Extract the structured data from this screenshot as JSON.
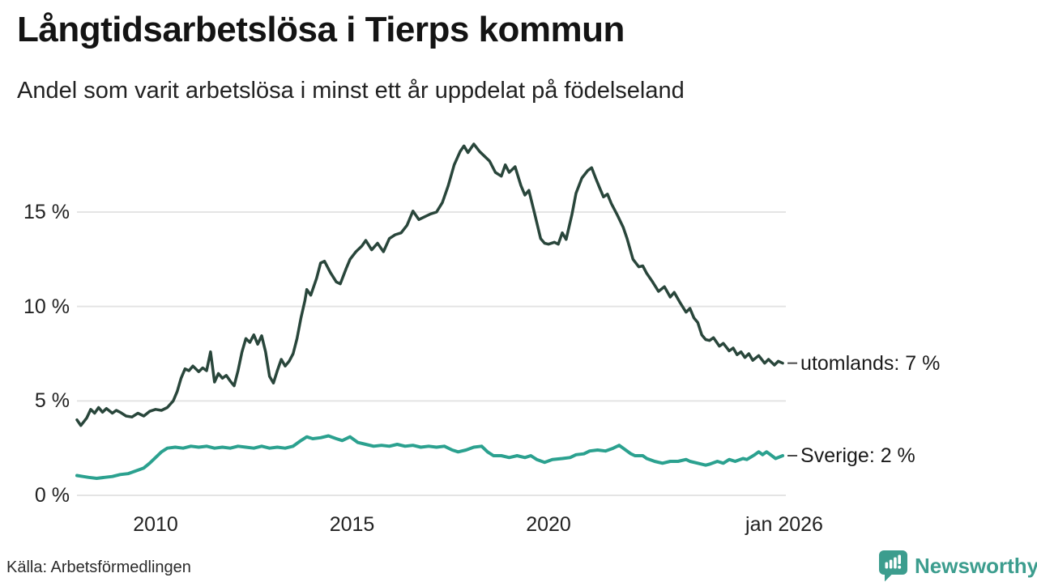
{
  "header": {
    "title": "Långtidsarbetslösa i Tierps kommun",
    "subtitle": "Andel som varit arbetslösa i minst ett år uppdelat på födelseland"
  },
  "footer": {
    "source": "Källa: Arbetsförmedlingen",
    "brand": "Newsworthy"
  },
  "colors": {
    "utomlands_line": "#29463b",
    "sverige_line": "#2ba18f",
    "grid": "#e4e4e4",
    "connector": "#4a4a4a",
    "brand_teal": "#3c9d8e",
    "text": "#1a1a1a"
  },
  "chart_data": {
    "type": "line",
    "title": "Långtidsarbetslösa i Tierps kommun",
    "subtitle": "Andel som varit arbetslösa i minst ett år uppdelat på födelseland",
    "xlabel": "",
    "ylabel": "",
    "xlim": [
      2008,
      2026.2
    ],
    "ylim": [
      0,
      19
    ],
    "grid": "horizontal-only",
    "legend_position": "line-end-labels",
    "yticks": [
      {
        "value": 0,
        "label": "0 %"
      },
      {
        "value": 5,
        "label": "5 %"
      },
      {
        "value": 10,
        "label": "10 %"
      },
      {
        "value": 15,
        "label": "15 %"
      }
    ],
    "xticks": [
      {
        "value": 2010,
        "label": "2010"
      },
      {
        "value": 2015,
        "label": "2015"
      },
      {
        "value": 2020,
        "label": "2020"
      },
      {
        "value": 2026,
        "label": "jan 2026"
      }
    ],
    "series": [
      {
        "name": "utomlands",
        "end_label": "utomlands: 7 %",
        "end_value_pct": 7,
        "color": "#29463b",
        "stroke_width": 3.5,
        "points": [
          [
            2008.0,
            4.0
          ],
          [
            2008.1,
            3.7
          ],
          [
            2008.25,
            4.1
          ],
          [
            2008.35,
            4.55
          ],
          [
            2008.45,
            4.35
          ],
          [
            2008.55,
            4.65
          ],
          [
            2008.65,
            4.4
          ],
          [
            2008.75,
            4.6
          ],
          [
            2008.9,
            4.35
          ],
          [
            2009.0,
            4.5
          ],
          [
            2009.1,
            4.4
          ],
          [
            2009.25,
            4.2
          ],
          [
            2009.4,
            4.15
          ],
          [
            2009.55,
            4.35
          ],
          [
            2009.7,
            4.2
          ],
          [
            2009.85,
            4.45
          ],
          [
            2010.0,
            4.55
          ],
          [
            2010.15,
            4.5
          ],
          [
            2010.3,
            4.65
          ],
          [
            2010.45,
            5.0
          ],
          [
            2010.55,
            5.5
          ],
          [
            2010.65,
            6.2
          ],
          [
            2010.75,
            6.7
          ],
          [
            2010.85,
            6.6
          ],
          [
            2010.95,
            6.85
          ],
          [
            2011.1,
            6.55
          ],
          [
            2011.2,
            6.75
          ],
          [
            2011.3,
            6.6
          ],
          [
            2011.4,
            7.6
          ],
          [
            2011.5,
            6.0
          ],
          [
            2011.6,
            6.45
          ],
          [
            2011.7,
            6.2
          ],
          [
            2011.8,
            6.35
          ],
          [
            2011.9,
            6.05
          ],
          [
            2012.0,
            5.8
          ],
          [
            2012.1,
            6.6
          ],
          [
            2012.2,
            7.6
          ],
          [
            2012.3,
            8.3
          ],
          [
            2012.4,
            8.1
          ],
          [
            2012.5,
            8.5
          ],
          [
            2012.6,
            8.0
          ],
          [
            2012.7,
            8.45
          ],
          [
            2012.8,
            7.6
          ],
          [
            2012.9,
            6.3
          ],
          [
            2013.0,
            5.95
          ],
          [
            2013.1,
            6.6
          ],
          [
            2013.2,
            7.2
          ],
          [
            2013.3,
            6.85
          ],
          [
            2013.4,
            7.1
          ],
          [
            2013.5,
            7.5
          ],
          [
            2013.6,
            8.3
          ],
          [
            2013.7,
            9.4
          ],
          [
            2013.8,
            10.3
          ],
          [
            2013.85,
            10.9
          ],
          [
            2013.95,
            10.6
          ],
          [
            2014.1,
            11.5
          ],
          [
            2014.2,
            12.3
          ],
          [
            2014.3,
            12.4
          ],
          [
            2014.45,
            11.8
          ],
          [
            2014.6,
            11.3
          ],
          [
            2014.7,
            11.2
          ],
          [
            2014.85,
            12.0
          ],
          [
            2014.95,
            12.5
          ],
          [
            2015.1,
            12.9
          ],
          [
            2015.25,
            13.2
          ],
          [
            2015.35,
            13.5
          ],
          [
            2015.5,
            13.0
          ],
          [
            2015.65,
            13.35
          ],
          [
            2015.8,
            12.9
          ],
          [
            2015.95,
            13.6
          ],
          [
            2016.1,
            13.8
          ],
          [
            2016.25,
            13.9
          ],
          [
            2016.4,
            14.3
          ],
          [
            2016.55,
            15.05
          ],
          [
            2016.7,
            14.6
          ],
          [
            2016.85,
            14.75
          ],
          [
            2017.0,
            14.9
          ],
          [
            2017.15,
            15.0
          ],
          [
            2017.3,
            15.5
          ],
          [
            2017.45,
            16.4
          ],
          [
            2017.6,
            17.5
          ],
          [
            2017.75,
            18.2
          ],
          [
            2017.85,
            18.5
          ],
          [
            2017.95,
            18.15
          ],
          [
            2018.1,
            18.6
          ],
          [
            2018.25,
            18.2
          ],
          [
            2018.4,
            17.9
          ],
          [
            2018.5,
            17.7
          ],
          [
            2018.65,
            17.1
          ],
          [
            2018.8,
            16.9
          ],
          [
            2018.9,
            17.5
          ],
          [
            2019.0,
            17.1
          ],
          [
            2019.15,
            17.4
          ],
          [
            2019.3,
            16.4
          ],
          [
            2019.4,
            15.9
          ],
          [
            2019.5,
            16.15
          ],
          [
            2019.65,
            14.9
          ],
          [
            2019.8,
            13.6
          ],
          [
            2019.9,
            13.35
          ],
          [
            2020.0,
            13.3
          ],
          [
            2020.15,
            13.4
          ],
          [
            2020.25,
            13.3
          ],
          [
            2020.35,
            13.9
          ],
          [
            2020.45,
            13.55
          ],
          [
            2020.6,
            14.9
          ],
          [
            2020.7,
            16.0
          ],
          [
            2020.85,
            16.8
          ],
          [
            2021.0,
            17.2
          ],
          [
            2021.1,
            17.35
          ],
          [
            2021.2,
            16.8
          ],
          [
            2021.3,
            16.3
          ],
          [
            2021.4,
            15.8
          ],
          [
            2021.5,
            15.95
          ],
          [
            2021.6,
            15.45
          ],
          [
            2021.75,
            14.85
          ],
          [
            2021.9,
            14.2
          ],
          [
            2022.0,
            13.6
          ],
          [
            2022.15,
            12.5
          ],
          [
            2022.3,
            12.1
          ],
          [
            2022.4,
            12.15
          ],
          [
            2022.5,
            11.75
          ],
          [
            2022.65,
            11.3
          ],
          [
            2022.8,
            10.8
          ],
          [
            2022.95,
            11.05
          ],
          [
            2023.1,
            10.5
          ],
          [
            2023.2,
            10.75
          ],
          [
            2023.35,
            10.2
          ],
          [
            2023.5,
            9.7
          ],
          [
            2023.6,
            9.9
          ],
          [
            2023.7,
            9.4
          ],
          [
            2023.8,
            9.15
          ],
          [
            2023.9,
            8.5
          ],
          [
            2024.0,
            8.25
          ],
          [
            2024.1,
            8.2
          ],
          [
            2024.2,
            8.35
          ],
          [
            2024.35,
            7.9
          ],
          [
            2024.45,
            8.05
          ],
          [
            2024.6,
            7.65
          ],
          [
            2024.7,
            7.8
          ],
          [
            2024.8,
            7.45
          ],
          [
            2024.9,
            7.6
          ],
          [
            2025.0,
            7.3
          ],
          [
            2025.1,
            7.5
          ],
          [
            2025.2,
            7.15
          ],
          [
            2025.35,
            7.4
          ],
          [
            2025.5,
            7.0
          ],
          [
            2025.6,
            7.2
          ],
          [
            2025.75,
            6.9
          ],
          [
            2025.85,
            7.1
          ],
          [
            2025.96,
            7.0
          ]
        ]
      },
      {
        "name": "Sverige",
        "end_label": "Sverige: 2 %",
        "end_value_pct": 2,
        "color": "#2ba18f",
        "stroke_width": 4,
        "points": [
          [
            2008.0,
            1.05
          ],
          [
            2008.15,
            1.0
          ],
          [
            2008.3,
            0.95
          ],
          [
            2008.5,
            0.9
          ],
          [
            2008.7,
            0.95
          ],
          [
            2008.9,
            1.0
          ],
          [
            2009.1,
            1.1
          ],
          [
            2009.3,
            1.15
          ],
          [
            2009.5,
            1.3
          ],
          [
            2009.7,
            1.45
          ],
          [
            2009.85,
            1.7
          ],
          [
            2010.0,
            2.0
          ],
          [
            2010.15,
            2.3
          ],
          [
            2010.3,
            2.5
          ],
          [
            2010.5,
            2.55
          ],
          [
            2010.7,
            2.5
          ],
          [
            2010.9,
            2.6
          ],
          [
            2011.1,
            2.55
          ],
          [
            2011.3,
            2.6
          ],
          [
            2011.5,
            2.5
          ],
          [
            2011.7,
            2.55
          ],
          [
            2011.9,
            2.5
          ],
          [
            2012.1,
            2.6
          ],
          [
            2012.3,
            2.55
          ],
          [
            2012.5,
            2.5
          ],
          [
            2012.7,
            2.6
          ],
          [
            2012.9,
            2.5
          ],
          [
            2013.1,
            2.55
          ],
          [
            2013.3,
            2.5
          ],
          [
            2013.5,
            2.6
          ],
          [
            2013.7,
            2.9
          ],
          [
            2013.85,
            3.1
          ],
          [
            2014.0,
            3.0
          ],
          [
            2014.2,
            3.05
          ],
          [
            2014.4,
            3.15
          ],
          [
            2014.6,
            3.0
          ],
          [
            2014.75,
            2.9
          ],
          [
            2014.95,
            3.1
          ],
          [
            2015.15,
            2.8
          ],
          [
            2015.35,
            2.7
          ],
          [
            2015.55,
            2.6
          ],
          [
            2015.75,
            2.65
          ],
          [
            2015.95,
            2.6
          ],
          [
            2016.15,
            2.7
          ],
          [
            2016.35,
            2.6
          ],
          [
            2016.55,
            2.65
          ],
          [
            2016.75,
            2.55
          ],
          [
            2016.95,
            2.6
          ],
          [
            2017.15,
            2.55
          ],
          [
            2017.35,
            2.6
          ],
          [
            2017.55,
            2.4
          ],
          [
            2017.7,
            2.3
          ],
          [
            2017.9,
            2.4
          ],
          [
            2018.1,
            2.55
          ],
          [
            2018.3,
            2.6
          ],
          [
            2018.45,
            2.3
          ],
          [
            2018.6,
            2.1
          ],
          [
            2018.8,
            2.1
          ],
          [
            2019.0,
            2.0
          ],
          [
            2019.2,
            2.1
          ],
          [
            2019.4,
            2.0
          ],
          [
            2019.55,
            2.1
          ],
          [
            2019.7,
            1.9
          ],
          [
            2019.9,
            1.75
          ],
          [
            2020.1,
            1.9
          ],
          [
            2020.35,
            1.95
          ],
          [
            2020.55,
            2.0
          ],
          [
            2020.7,
            2.15
          ],
          [
            2020.9,
            2.2
          ],
          [
            2021.05,
            2.35
          ],
          [
            2021.25,
            2.4
          ],
          [
            2021.45,
            2.35
          ],
          [
            2021.65,
            2.5
          ],
          [
            2021.8,
            2.65
          ],
          [
            2021.9,
            2.5
          ],
          [
            2022.1,
            2.2
          ],
          [
            2022.2,
            2.1
          ],
          [
            2022.4,
            2.1
          ],
          [
            2022.5,
            1.95
          ],
          [
            2022.7,
            1.8
          ],
          [
            2022.9,
            1.7
          ],
          [
            2023.1,
            1.8
          ],
          [
            2023.3,
            1.8
          ],
          [
            2023.5,
            1.9
          ],
          [
            2023.6,
            1.8
          ],
          [
            2023.8,
            1.7
          ],
          [
            2024.0,
            1.6
          ],
          [
            2024.1,
            1.65
          ],
          [
            2024.3,
            1.8
          ],
          [
            2024.45,
            1.7
          ],
          [
            2024.6,
            1.9
          ],
          [
            2024.75,
            1.8
          ],
          [
            2024.95,
            1.95
          ],
          [
            2025.05,
            1.9
          ],
          [
            2025.25,
            2.15
          ],
          [
            2025.35,
            2.3
          ],
          [
            2025.45,
            2.15
          ],
          [
            2025.55,
            2.3
          ],
          [
            2025.65,
            2.15
          ],
          [
            2025.78,
            1.95
          ],
          [
            2025.96,
            2.1
          ]
        ]
      }
    ]
  }
}
